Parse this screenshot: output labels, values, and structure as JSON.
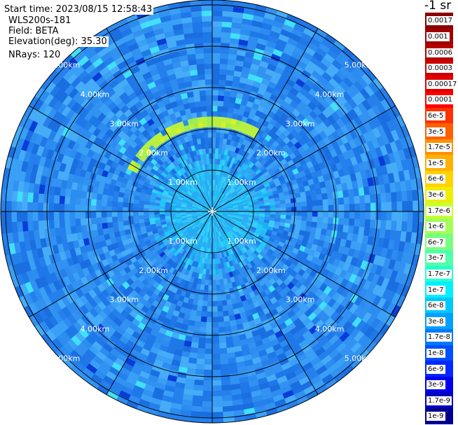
{
  "header": {
    "start_time": "Start time: 2023/08/15 12:58:43",
    "instrument": "WLS200s-181",
    "field": "Field: BETA",
    "elevation": "Elevation(deg): 35.30",
    "nrays": "NRays: 120"
  },
  "range_rings": [
    "1.00km",
    "2.00km",
    "3.00km",
    "4.00km",
    "5.00km"
  ],
  "colorbar": {
    "title": "-1 sr",
    "labels": [
      "0.0017",
      "0.001",
      "0.0006",
      "0.0003",
      "0.00017",
      "0.0001",
      "6e-5",
      "3e-5",
      "1.7e-5",
      "1e-5",
      "6e-6",
      "3e-6",
      "1.7e-6",
      "1e-6",
      "6e-7",
      "3e-7",
      "1.7e-7",
      "1e-7",
      "6e-8",
      "3e-8",
      "1.7e-8",
      "1e-8",
      "6e-9",
      "3e-9",
      "1.7e-9",
      "1e-9"
    ],
    "colors": [
      "#8b0000",
      "#a00000",
      "#b50000",
      "#cc0000",
      "#e00000",
      "#ff0000",
      "#ff3000",
      "#ff6000",
      "#ff9000",
      "#ffb000",
      "#ffd200",
      "#eeee00",
      "#c8ff30",
      "#a0ff58",
      "#78ff80",
      "#50ffa8",
      "#28ffd0",
      "#00f0ff",
      "#00c8ff",
      "#00a0ff",
      "#0078ff",
      "#0050ff",
      "#0028ff",
      "#0000f0",
      "#0000c0",
      "#000090"
    ]
  }
}
